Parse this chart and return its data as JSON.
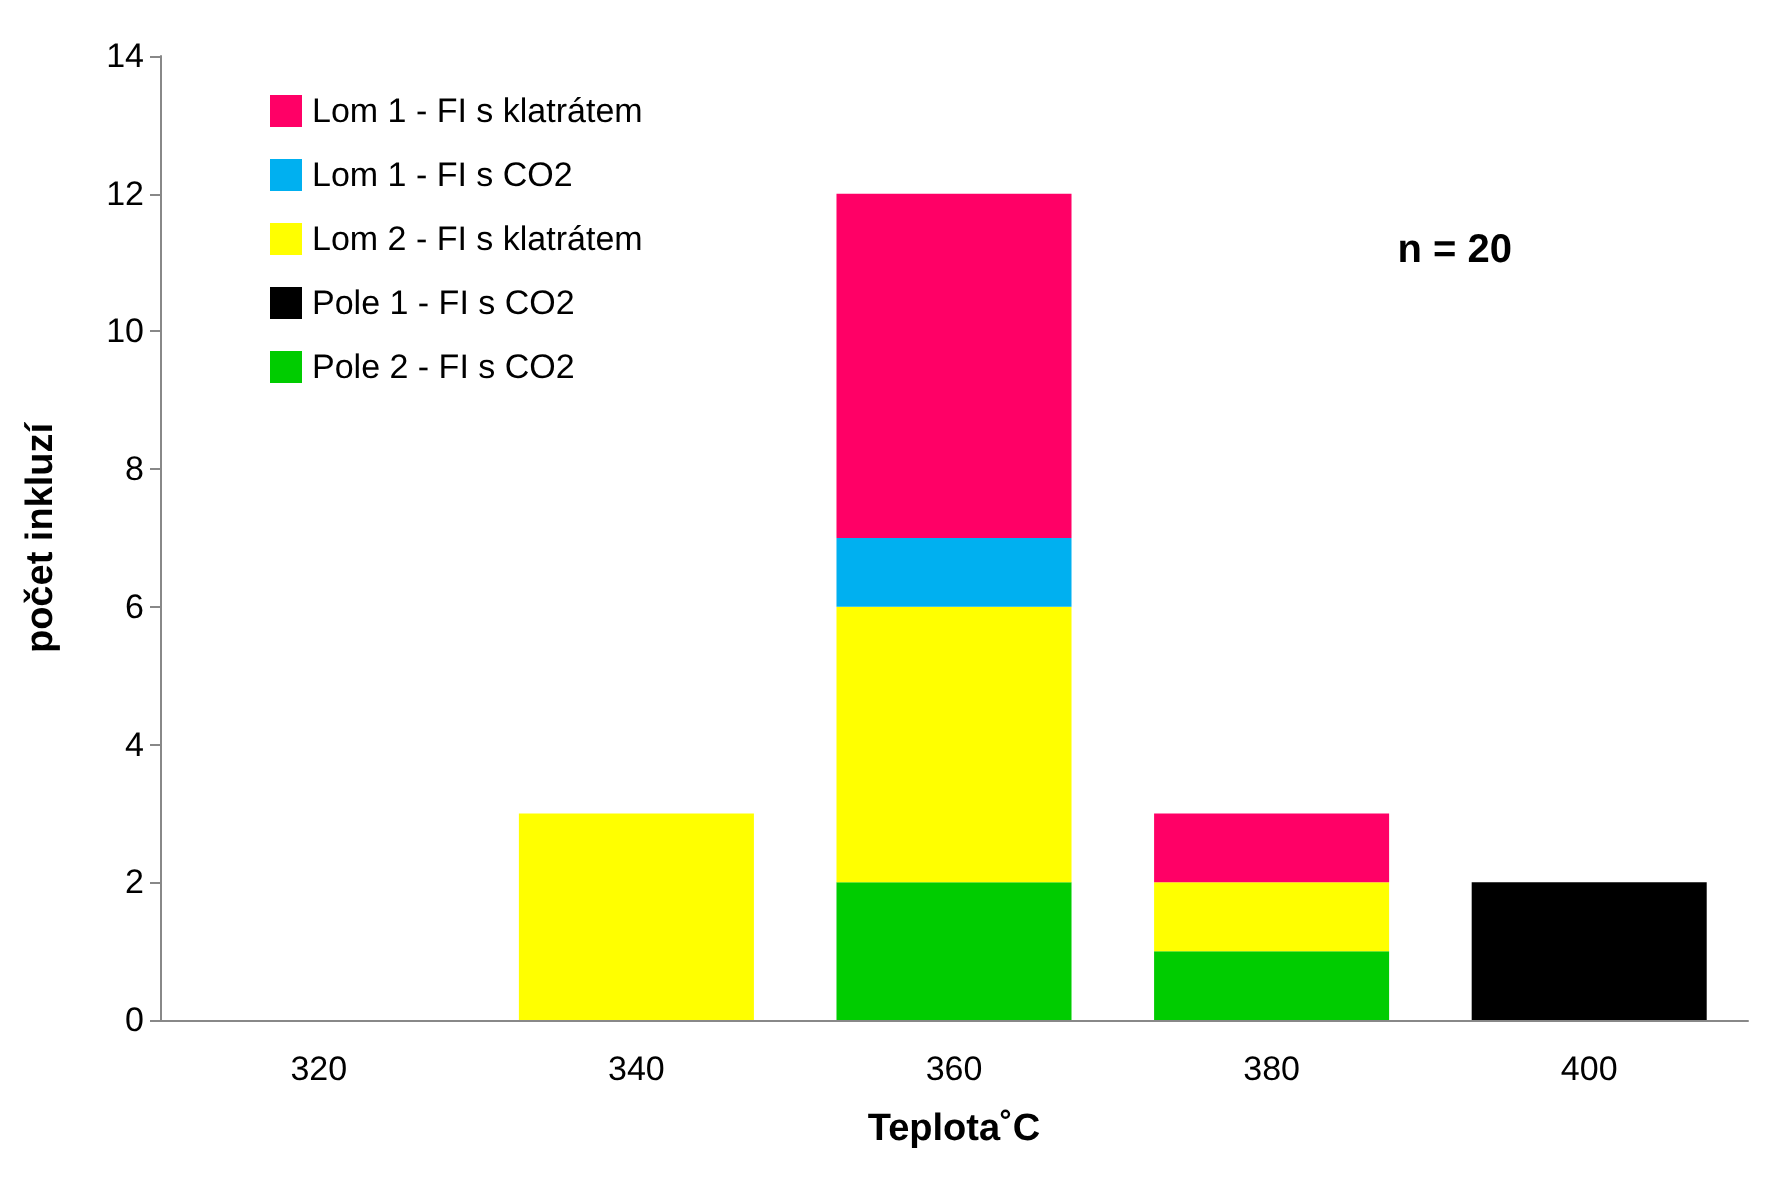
{
  "chart_data": {
    "type": "bar",
    "stacked": true,
    "xlabel": "Teplota˚C",
    "ylabel": "počet inkluzí",
    "categories": [
      "320",
      "340",
      "360",
      "380",
      "400"
    ],
    "series": [
      {
        "name": "Pole 2 - FI s CO2",
        "color": "#00cc00",
        "values": [
          0,
          0,
          2,
          1,
          0
        ]
      },
      {
        "name": "Pole 1 - FI s CO2",
        "color": "#000000",
        "values": [
          0,
          0,
          0,
          0,
          2
        ]
      },
      {
        "name": "Lom 2 - FI s klatrátem",
        "color": "#ffff00",
        "values": [
          0,
          3,
          4,
          1,
          0
        ]
      },
      {
        "name": "Lom 1 - FI s CO2",
        "color": "#00b0f0",
        "values": [
          0,
          0,
          1,
          0,
          0
        ]
      },
      {
        "name": "Lom 1 - FI s klatrátem",
        "color": "#ff0066",
        "values": [
          0,
          0,
          5,
          1,
          0
        ]
      }
    ],
    "ylim": [
      0,
      14
    ],
    "yticks": [
      0,
      2,
      4,
      6,
      8,
      10,
      12,
      14
    ],
    "grid": false,
    "legend": "top left",
    "annotations": [
      "n = 20"
    ]
  }
}
